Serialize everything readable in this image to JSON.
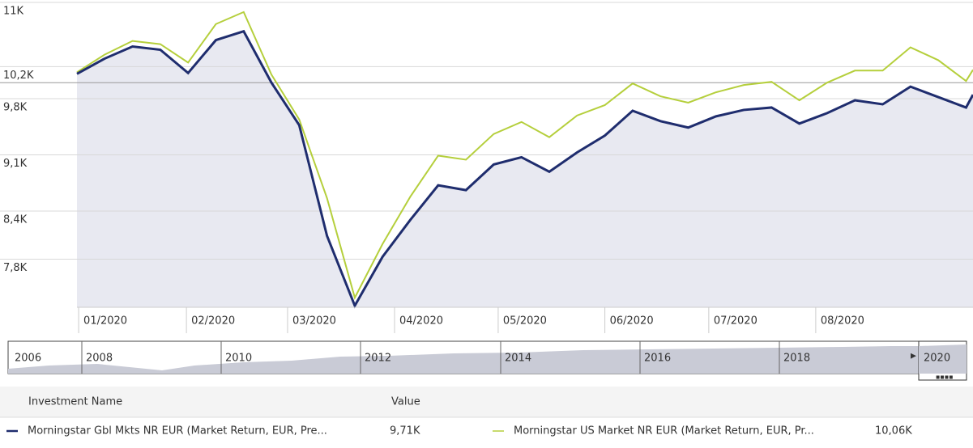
{
  "chart_data": {
    "type": "line",
    "x": [
      0,
      1,
      2,
      3,
      4,
      5,
      6,
      7,
      8,
      9,
      10,
      11,
      12,
      13,
      14,
      15,
      16,
      17,
      18,
      19,
      20,
      21,
      22,
      23,
      24,
      25,
      26,
      27,
      28,
      29,
      30,
      31,
      32,
      32.25
    ],
    "xlim": [
      0,
      32.25
    ],
    "xticks": [
      {
        "value": 0.06,
        "label": "01/2020"
      },
      {
        "value": 3.94,
        "label": "02/2020"
      },
      {
        "value": 7.58,
        "label": "03/2020"
      },
      {
        "value": 11.43,
        "label": "04/2020"
      },
      {
        "value": 15.16,
        "label": "05/2020"
      },
      {
        "value": 19.0,
        "label": "06/2020"
      },
      {
        "value": 22.74,
        "label": "07/2020"
      },
      {
        "value": 26.59,
        "label": "08/2020"
      }
    ],
    "ylim": [
      7200,
      11030
    ],
    "yticks": [
      {
        "value": 11000,
        "label": "11K"
      },
      {
        "value": 10200,
        "label": "10,2K"
      },
      {
        "value": 9800,
        "label": "9,8K"
      },
      {
        "value": 9100,
        "label": "9,1K"
      },
      {
        "value": 8400,
        "label": "8,4K"
      },
      {
        "value": 7800,
        "label": "7,8K"
      }
    ],
    "grid": true,
    "reference_line": 10000,
    "series": [
      {
        "name": "Morningstar Gbl Mkts NR EUR (Market Return, EUR, Pre...",
        "color": "#1f2d6e",
        "area": true,
        "values": [
          10110,
          10300,
          10450,
          10410,
          10120,
          10530,
          10640,
          10000,
          9470,
          8090,
          7220,
          7830,
          8290,
          8720,
          8660,
          8980,
          9070,
          8890,
          9130,
          9340,
          9650,
          9520,
          9440,
          9580,
          9660,
          9690,
          9490,
          9620,
          9780,
          9730,
          9950,
          9820,
          9690,
          9850
        ]
      },
      {
        "name": "Morningstar US Market NR EUR (Market Return, EUR, Pr...",
        "color": "#b5cf3c",
        "area": false,
        "values": [
          10130,
          10350,
          10520,
          10480,
          10250,
          10730,
          10880,
          10100,
          9540,
          8560,
          7320,
          7990,
          8580,
          9090,
          9040,
          9360,
          9510,
          9320,
          9590,
          9720,
          9990,
          9830,
          9750,
          9880,
          9970,
          10010,
          9780,
          10000,
          10150,
          10150,
          10440,
          10280,
          10020,
          10160
        ]
      }
    ]
  },
  "navigator": {
    "labels": [
      "2006",
      "2008",
      "2010",
      "2012",
      "2014",
      "2016",
      "2018",
      "2020"
    ]
  },
  "legend_table": {
    "headers": [
      "Investment Name",
      "Value"
    ],
    "values": [
      "9,71K",
      "10,06K"
    ]
  }
}
